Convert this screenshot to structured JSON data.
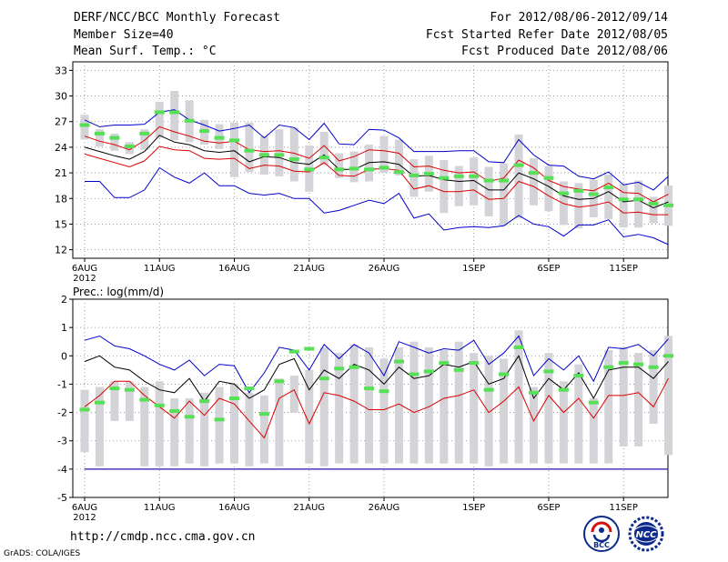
{
  "header": {
    "title": "DERF/NCC/BCC Monthly Forecast",
    "member": "Member Size=40",
    "variable": "Mean Surf. Temp.: °C",
    "period": "For 2012/08/06-2012/09/14",
    "started": "Fcst Started Refer Date 2012/08/05",
    "produced": "Fcst Produced Date 2012/08/06"
  },
  "footer": {
    "url": "http://cmdp.ncc.cma.gov.cn",
    "credit": "GrADS: COLA/IGES",
    "logo_bcc": "BCC",
    "logo_ncc": "NCC"
  },
  "colors": {
    "box": "#d3d3d8",
    "median": "#55e055",
    "mean": "#000000",
    "inner": "#dd0000",
    "outer": "#0000cc",
    "grid": "#888888"
  },
  "chart_data": [
    {
      "type": "line",
      "title": "Mean Surf. Temp.: °C",
      "ylim": [
        11,
        34
      ],
      "yticks": [
        12,
        15,
        18,
        21,
        24,
        27,
        30,
        33
      ],
      "x": [
        0,
        1,
        2,
        3,
        4,
        5,
        6,
        7,
        8,
        9,
        10,
        11,
        12,
        13,
        14,
        15,
        16,
        17,
        18,
        19,
        20,
        21,
        22,
        23,
        24,
        25,
        26,
        27,
        28,
        29,
        30,
        31,
        32,
        33,
        34,
        35,
        36,
        37,
        38,
        39
      ],
      "xticks": [
        {
          "day": 0,
          "label": "6AUG",
          "sub": "2012"
        },
        {
          "day": 5,
          "label": "11AUG"
        },
        {
          "day": 10,
          "label": "16AUG"
        },
        {
          "day": 15,
          "label": "21AUG"
        },
        {
          "day": 20,
          "label": "26AUG"
        },
        {
          "day": 26,
          "label": "1SEP"
        },
        {
          "day": 31,
          "label": "6SEP"
        },
        {
          "day": 36,
          "label": "11SEP"
        }
      ],
      "series": [
        {
          "name": "max",
          "color": "#0000cc",
          "values": [
            27.2,
            26.4,
            26.6,
            26.6,
            26.7,
            28.1,
            28.4,
            27.2,
            26.6,
            25.9,
            26.2,
            26.6,
            25.1,
            26.6,
            26.3,
            24.9,
            26.8,
            24.4,
            24.3,
            26.1,
            26.0,
            25.1,
            23.5,
            23.5,
            23.5,
            23.6,
            23.6,
            22.3,
            22.2,
            24.9,
            23.1,
            21.9,
            21.8,
            20.6,
            20.3,
            21.1,
            19.6,
            19.9,
            19.0,
            20.6
          ]
        },
        {
          "name": "upper",
          "color": "#dd0000",
          "values": [
            25.3,
            24.7,
            24.3,
            23.7,
            24.8,
            26.4,
            25.8,
            25.3,
            24.7,
            24.5,
            24.7,
            23.7,
            23.5,
            23.6,
            23.3,
            22.7,
            24.2,
            22.4,
            22.9,
            23.7,
            23.6,
            23.3,
            21.7,
            21.8,
            21.3,
            21.0,
            21.1,
            20.0,
            20.4,
            22.5,
            21.6,
            20.1,
            19.4,
            19.1,
            18.9,
            19.8,
            18.7,
            18.6,
            17.6,
            18.5
          ]
        },
        {
          "name": "mean",
          "color": "#000000",
          "values": [
            24.0,
            23.5,
            23.0,
            22.6,
            23.5,
            25.4,
            24.6,
            24.3,
            23.6,
            23.4,
            23.6,
            22.3,
            22.9,
            22.8,
            22.2,
            22.0,
            23.1,
            21.4,
            21.4,
            22.2,
            22.3,
            22.0,
            20.6,
            20.7,
            20.2,
            20.0,
            20.1,
            19.0,
            19.0,
            21.0,
            20.3,
            19.4,
            18.3,
            17.9,
            18.0,
            18.8,
            17.6,
            17.8,
            16.9,
            17.6
          ]
        },
        {
          "name": "lower",
          "color": "#dd0000",
          "values": [
            23.2,
            22.7,
            22.2,
            21.7,
            22.4,
            24.1,
            23.7,
            23.6,
            22.7,
            22.6,
            22.7,
            21.5,
            21.9,
            21.8,
            21.2,
            21.1,
            22.2,
            20.7,
            20.6,
            21.4,
            21.5,
            21.3,
            19.1,
            19.5,
            18.8,
            18.8,
            19.0,
            17.9,
            18.0,
            20.0,
            19.4,
            18.3,
            17.4,
            17.0,
            17.2,
            17.6,
            16.3,
            16.4,
            16.1,
            16.1
          ]
        },
        {
          "name": "min",
          "color": "#0000cc",
          "values": [
            20.0,
            20.0,
            18.1,
            18.1,
            19.0,
            21.6,
            20.5,
            19.8,
            21.0,
            19.5,
            19.5,
            18.6,
            18.4,
            18.6,
            18.0,
            18.0,
            16.3,
            16.6,
            17.2,
            17.8,
            17.4,
            18.6,
            15.7,
            16.2,
            14.3,
            14.6,
            14.7,
            14.6,
            14.8,
            16.0,
            15.0,
            14.7,
            13.6,
            14.9,
            14.9,
            15.5,
            13.5,
            13.8,
            13.4,
            12.6
          ]
        }
      ],
      "boxes": {
        "low": [
          24.9,
          24.1,
          23.6,
          23.2,
          23.7,
          25.1,
          24.8,
          24.6,
          24.3,
          23.8,
          20.5,
          21.1,
          20.8,
          20.6,
          20.0,
          18.8,
          21.9,
          20.4,
          19.9,
          20.0,
          21.0,
          20.7,
          18.2,
          18.8,
          16.3,
          17.1,
          17.2,
          15.9,
          14.8,
          15.7,
          17.2,
          16.5,
          14.9,
          14.5,
          15.8,
          15.6,
          14.6,
          14.6,
          15.1,
          14.8
        ],
        "high": [
          27.8,
          26.1,
          25.6,
          24.6,
          26.1,
          29.3,
          30.6,
          29.5,
          27.2,
          26.7,
          26.9,
          26.9,
          25.3,
          26.1,
          26.3,
          24.2,
          25.8,
          23.3,
          23.5,
          24.3,
          25.3,
          24.9,
          22.6,
          23.0,
          22.5,
          21.8,
          22.8,
          21.7,
          22.1,
          25.5,
          22.7,
          21.8,
          20.0,
          19.8,
          20.2,
          20.8,
          19.7,
          20.1,
          18.2,
          19.5
        ],
        "median": [
          26.6,
          25.6,
          25.1,
          24.1,
          25.6,
          28.1,
          28.1,
          27.1,
          25.9,
          25.1,
          24.8,
          23.6,
          23.1,
          23.1,
          22.6,
          21.4,
          22.8,
          21.4,
          21.5,
          21.4,
          21.6,
          21.1,
          20.7,
          20.9,
          20.4,
          20.6,
          20.6,
          20.1,
          20.1,
          21.9,
          21.0,
          20.4,
          18.6,
          18.9,
          18.5,
          19.3,
          17.9,
          17.9,
          17.4,
          17.2
        ]
      }
    },
    {
      "type": "line",
      "title": "Prec.: log(mm/d)",
      "ylim": [
        -5,
        2
      ],
      "yticks": [
        -5,
        -4,
        -3,
        -2,
        -1,
        0,
        1,
        2
      ],
      "x": [
        0,
        1,
        2,
        3,
        4,
        5,
        6,
        7,
        8,
        9,
        10,
        11,
        12,
        13,
        14,
        15,
        16,
        17,
        18,
        19,
        20,
        21,
        22,
        23,
        24,
        25,
        26,
        27,
        28,
        29,
        30,
        31,
        32,
        33,
        34,
        35,
        36,
        37,
        38,
        39
      ],
      "xticks": [
        {
          "day": 0,
          "label": "6AUG",
          "sub": "2012"
        },
        {
          "day": 5,
          "label": "11AUG"
        },
        {
          "day": 10,
          "label": "16AUG"
        },
        {
          "day": 15,
          "label": "21AUG"
        },
        {
          "day": 20,
          "label": "26AUG"
        },
        {
          "day": 26,
          "label": "1SEP"
        },
        {
          "day": 31,
          "label": "6SEP"
        },
        {
          "day": 36,
          "label": "11SEP"
        }
      ],
      "series": [
        {
          "name": "max",
          "color": "#0000cc",
          "values": [
            0.55,
            0.7,
            0.35,
            0.25,
            0.0,
            -0.3,
            -0.5,
            -0.15,
            -0.7,
            -0.3,
            -0.35,
            -1.3,
            -0.6,
            0.3,
            0.2,
            -0.5,
            0.4,
            -0.1,
            0.4,
            0.1,
            -0.7,
            0.5,
            0.3,
            0.1,
            0.25,
            0.2,
            0.55,
            -0.3,
            0.1,
            0.7,
            -0.7,
            -0.1,
            -0.5,
            0.0,
            -0.9,
            0.3,
            0.25,
            0.4,
            0.0,
            0.6
          ]
        },
        {
          "name": "upper",
          "color": "#000000",
          "values": [
            -0.2,
            -0.0,
            -0.4,
            -0.5,
            -0.9,
            -1.2,
            -1.3,
            -0.8,
            -1.6,
            -0.9,
            -1.0,
            -1.5,
            -1.2,
            -0.3,
            -0.1,
            -1.2,
            -0.5,
            -0.8,
            -0.3,
            -0.5,
            -1.0,
            -0.4,
            -0.8,
            -0.7,
            -0.3,
            -0.4,
            -0.2,
            -1.0,
            -0.8,
            0.0,
            -1.5,
            -0.8,
            -1.2,
            -0.6,
            -1.5,
            -0.5,
            -0.4,
            -0.4,
            -0.8,
            -0.2
          ]
        },
        {
          "name": "lower",
          "color": "#dd0000",
          "values": [
            -1.8,
            -1.4,
            -0.9,
            -0.9,
            -1.4,
            -1.8,
            -2.2,
            -1.6,
            -2.1,
            -1.5,
            -1.7,
            -2.3,
            -2.9,
            -1.5,
            -1.2,
            -2.4,
            -1.3,
            -1.4,
            -1.6,
            -1.9,
            -1.9,
            -1.7,
            -2.0,
            -1.8,
            -1.5,
            -1.4,
            -1.2,
            -2.0,
            -1.6,
            -1.1,
            -2.3,
            -1.4,
            -2.0,
            -1.5,
            -2.2,
            -1.4,
            -1.4,
            -1.3,
            -1.8,
            -0.8
          ]
        },
        {
          "name": "lower-floor",
          "color": "#dd0000",
          "values": [
            -4.0,
            -4.0,
            -4.0,
            -4.0,
            -4.0,
            -4.0,
            -4.0,
            -4.0,
            -4.0,
            -4.0,
            -4.0,
            -4.0,
            -4.0,
            -4.0,
            -4.0,
            -4.0,
            -4.0,
            -4.0,
            -4.0,
            -4.0,
            -4.0,
            -4.0,
            -4.0,
            -4.0,
            -4.0,
            -4.0,
            -4.0,
            -4.0,
            -4.0,
            -4.0,
            -4.0,
            -4.0,
            -4.0,
            -4.0,
            -4.0,
            -4.0,
            -4.0,
            -4.0,
            -4.0,
            -4.0
          ]
        },
        {
          "name": "min",
          "color": "#0000cc",
          "values": [
            -4.0,
            -4.0,
            -4.0,
            -4.0,
            -4.0,
            -4.0,
            -4.0,
            -4.0,
            -4.0,
            -4.0,
            -4.0,
            -4.0,
            -4.0,
            -4.0,
            -4.0,
            -4.0,
            -4.0,
            -4.0,
            -4.0,
            -4.0,
            -4.0,
            -4.0,
            -4.0,
            -4.0,
            -4.0,
            -4.0,
            -4.0,
            -4.0,
            -4.0,
            -4.0,
            -4.0,
            -4.0,
            -4.0,
            -4.0,
            -4.0,
            -4.0,
            -4.0,
            -4.0,
            -4.0,
            -4.0
          ]
        }
      ],
      "boxes": {
        "low": [
          -3.4,
          -3.9,
          -2.3,
          -2.3,
          -3.9,
          -3.9,
          -3.9,
          -3.8,
          -3.9,
          -3.8,
          -3.8,
          -3.9,
          -3.8,
          -3.9,
          -2.0,
          -3.8,
          -3.9,
          -3.8,
          -3.8,
          -3.8,
          -3.8,
          -3.8,
          -3.8,
          -3.8,
          -3.8,
          -3.8,
          -3.8,
          -3.9,
          -3.8,
          -3.8,
          -3.8,
          -3.8,
          -3.8,
          -3.8,
          -3.8,
          -3.8,
          -3.2,
          -3.2,
          -2.4,
          -3.5
        ],
        "high": [
          -1.2,
          -1.1,
          -0.9,
          -0.9,
          -1.1,
          -0.9,
          -1.5,
          -1.5,
          -1.3,
          -1.1,
          -1.0,
          -1.3,
          -1.4,
          -0.8,
          -0.7,
          -0.5,
          0.3,
          0.1,
          0.4,
          0.3,
          -0.1,
          0.3,
          0.5,
          0.3,
          0.2,
          0.5,
          0.1,
          0.0,
          -0.1,
          0.9,
          -1.1,
          0.1,
          -0.9,
          -0.3,
          -1.5,
          0.2,
          0.3,
          0.1,
          0.2,
          0.7
        ],
        "median": [
          -1.9,
          -1.65,
          -1.15,
          -1.2,
          -1.55,
          -1.75,
          -1.95,
          -2.15,
          -1.6,
          -2.25,
          -1.5,
          -1.15,
          -2.05,
          -0.9,
          0.15,
          0.25,
          -0.8,
          -0.45,
          -0.4,
          -1.15,
          -1.25,
          -0.2,
          -0.65,
          -0.55,
          -0.25,
          -0.5,
          -0.25,
          -1.2,
          -0.65,
          0.3,
          -1.3,
          -0.55,
          -1.2,
          -0.7,
          -1.65,
          -0.4,
          -0.25,
          -0.3,
          -0.4,
          0.0
        ]
      }
    }
  ]
}
